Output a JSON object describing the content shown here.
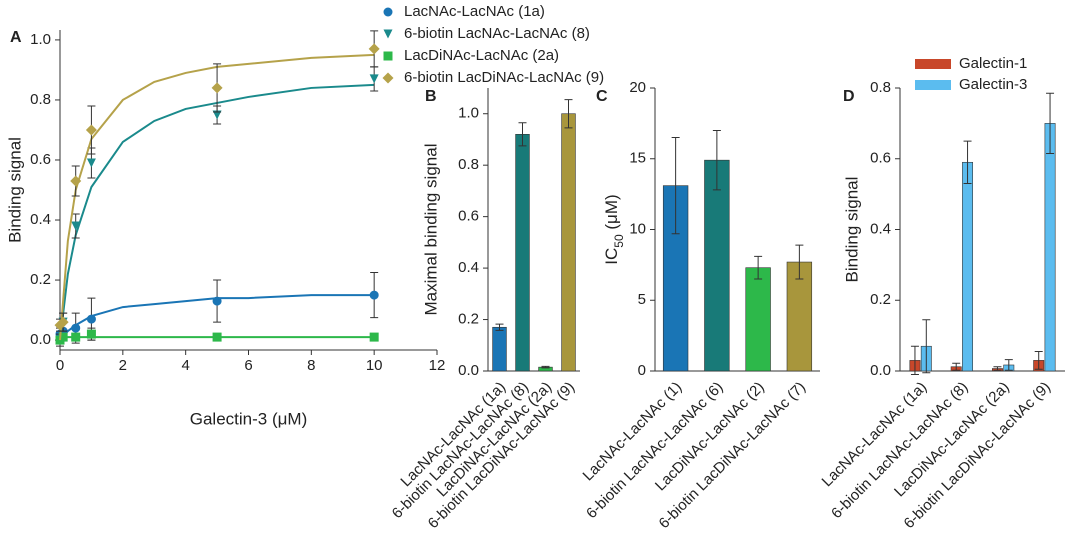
{
  "chart_data": [
    {
      "type": "scatter",
      "panel_label": "A",
      "xlabel": "Galectin-3 (μM)",
      "ylabel": "Binding signal",
      "x": [
        0,
        0.1,
        0.5,
        1,
        5,
        10
      ],
      "fit_x": [
        0,
        0.25,
        0.5,
        1,
        2,
        3,
        4,
        5,
        6,
        8,
        10
      ],
      "series": [
        {
          "name": "LacNAc-LacNAc (1a)",
          "color": "#1a75b5",
          "marker": "circle",
          "values": [
            0.02,
            0.03,
            0.04,
            0.07,
            0.13,
            0.15
          ],
          "errors": [
            0.02,
            0.03,
            0.05,
            0.07,
            0.07,
            0.075
          ],
          "fit": [
            0,
            0.03,
            0.05,
            0.08,
            0.11,
            0.12,
            0.13,
            0.14,
            0.14,
            0.15,
            0.15
          ]
        },
        {
          "name": "6-biotin LacNAc-LacNAc (8)",
          "color": "#1a8a8c",
          "marker": "triangle",
          "values": [
            0.0,
            0.06,
            0.38,
            0.59,
            0.75,
            0.87
          ],
          "errors": [
            0.02,
            0.03,
            0.04,
            0.05,
            0.03,
            0.04
          ],
          "fit": [
            0,
            0.22,
            0.35,
            0.51,
            0.66,
            0.73,
            0.77,
            0.79,
            0.81,
            0.84,
            0.85
          ]
        },
        {
          "name": "LacDiNAc-LacNAc (2a)",
          "color": "#2db84a",
          "marker": "square",
          "values": [
            0.0,
            0.01,
            0.01,
            0.02,
            0.01,
            0.01
          ],
          "errors": [
            0.01,
            0.01,
            0.01,
            0.02,
            0.01,
            0.01
          ],
          "fit": [
            0,
            0.01,
            0.01,
            0.01,
            0.01,
            0.01,
            0.01,
            0.01,
            0.01,
            0.01,
            0.01
          ]
        },
        {
          "name": "6-biotin LacDiNAc-LacNAc (9)",
          "color": "#b5a24a",
          "marker": "diamond",
          "values": [
            0.05,
            0.06,
            0.53,
            0.7,
            0.84,
            0.97
          ],
          "errors": [
            0.02,
            0.03,
            0.05,
            0.08,
            0.08,
            0.06
          ],
          "fit": [
            0,
            0.33,
            0.5,
            0.67,
            0.8,
            0.86,
            0.89,
            0.91,
            0.92,
            0.94,
            0.95
          ]
        }
      ],
      "xlim": [
        0,
        12
      ],
      "xticks": [
        0,
        2,
        4,
        6,
        8,
        10,
        12
      ],
      "ylim": [
        -0.033,
        1.033
      ],
      "yticks": [
        {
          "value": 0,
          "label": "0.0"
        },
        {
          "value": 0.2,
          "label": "0.2"
        },
        {
          "value": 0.4,
          "label": "0.4"
        },
        {
          "value": 0.6,
          "label": "0.6"
        },
        {
          "value": 0.8,
          "label": "0.8"
        },
        {
          "value": 1.0,
          "label": "1.0"
        }
      ]
    },
    {
      "type": "bar",
      "panel_label": "B",
      "ylabel": "Maximal binding signal",
      "categories": [
        "LacNAc-LacNAc (1a)",
        "6-biotin LacNAc-LacNAc (8)",
        "LacDiNAc-LacNAc (2a)",
        "6-biotin LacDiNAc-LacNAc (9)"
      ],
      "series": [
        {
          "colors": [
            "#1a75b5",
            "#187a78",
            "#2db84a",
            "#a8963c"
          ],
          "values": [
            0.17,
            0.92,
            0.015,
            1.0
          ],
          "errors": [
            0.012,
            0.045,
            0.003,
            0.055
          ]
        }
      ],
      "ylim": [
        0,
        1.1
      ],
      "yticks": [
        {
          "value": 0,
          "label": "0.0"
        },
        {
          "value": 0.2,
          "label": "0.2"
        },
        {
          "value": 0.4,
          "label": "0.4"
        },
        {
          "value": 0.6,
          "label": "0.6"
        },
        {
          "value": 0.8,
          "label": "0.8"
        },
        {
          "value": 1.0,
          "label": "1.0"
        }
      ]
    },
    {
      "type": "bar",
      "panel_label": "C",
      "ylabel_parts": [
        "IC",
        "50",
        " (μM)"
      ],
      "categories": [
        "LacNAc-LacNAc (1)",
        "6-biotin LacNAc-LacNAc (6)",
        "LacDiNAc-LacNAc (2)",
        "6-biotin LacDiNAc-LacNAc (7)"
      ],
      "series": [
        {
          "colors": [
            "#1a75b5",
            "#187a78",
            "#2db84a",
            "#a8963c"
          ],
          "values": [
            13.1,
            14.9,
            7.3,
            7.7
          ],
          "errors": [
            3.4,
            2.1,
            0.8,
            1.2
          ]
        }
      ],
      "ylim": [
        0,
        20
      ],
      "yticks": [
        0,
        5,
        10,
        15,
        20
      ]
    },
    {
      "type": "bar",
      "panel_label": "D",
      "ylabel": "Binding signal",
      "legend": "upper left",
      "categories": [
        "LacNAc-LacNAc (1a)",
        "6-biotin LacNAc-LacNAc (8)",
        "LacDiNAc-LacNAc (2a)",
        "6-biotin LacDiNAc-LacNAc (9)"
      ],
      "series": [
        {
          "name": "Galectin-1",
          "color": "#c8472a",
          "values": [
            0.03,
            0.012,
            0.007,
            0.03
          ],
          "errors": [
            0.04,
            0.01,
            0.005,
            0.025
          ]
        },
        {
          "name": "Galectin-3",
          "color": "#5bbcef",
          "values": [
            0.07,
            0.59,
            0.017,
            0.7
          ],
          "errors": [
            0.075,
            0.06,
            0.015,
            0.085
          ]
        }
      ],
      "ylim": [
        0,
        0.8
      ],
      "yticks": [
        {
          "value": 0,
          "label": "0.0"
        },
        {
          "value": 0.2,
          "label": "0.2"
        },
        {
          "value": 0.4,
          "label": "0.4"
        },
        {
          "value": 0.6,
          "label": "0.6"
        },
        {
          "value": 0.8,
          "label": "0.8"
        }
      ]
    }
  ]
}
